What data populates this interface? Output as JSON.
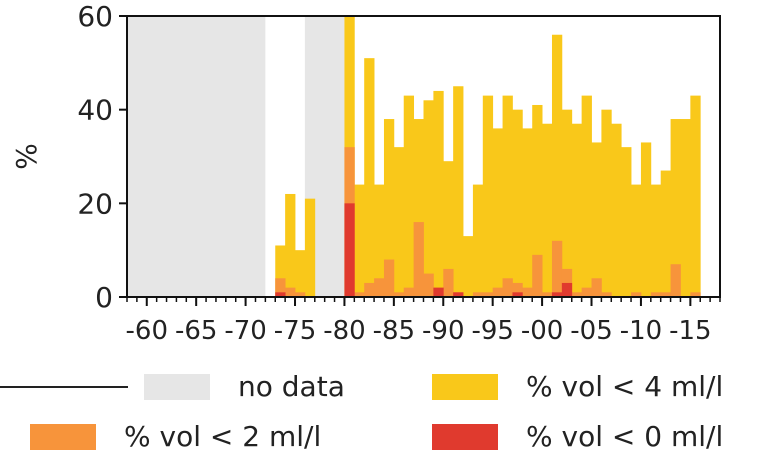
{
  "chart_data": {
    "type": "bar",
    "stacked": false,
    "overlaid": true,
    "ylabel": "%",
    "ylim": [
      0,
      60
    ],
    "yticks": [
      0,
      20,
      40,
      60
    ],
    "xlim": [
      1958,
      2018
    ],
    "xtick_labels": [
      "-60",
      "-65",
      "-70",
      "-75",
      "-80",
      "-85",
      "-90",
      "-95",
      "-00",
      "-05",
      "-10",
      "-15"
    ],
    "xtick_years": [
      1960,
      1965,
      1970,
      1975,
      1980,
      1985,
      1990,
      1995,
      2000,
      2005,
      2010,
      2015
    ],
    "no_data_spans": [
      [
        1958,
        1971
      ],
      [
        1976,
        1979
      ]
    ],
    "years": [
      1973,
      1974,
      1975,
      1976,
      1977,
      1978,
      1979,
      1980,
      1981,
      1982,
      1983,
      1984,
      1985,
      1986,
      1987,
      1988,
      1989,
      1990,
      1991,
      1992,
      1993,
      1994,
      1995,
      1996,
      1997,
      1998,
      1999,
      2000,
      2001,
      2002,
      2003,
      2004,
      2005,
      2006,
      2007,
      2008,
      2009,
      2010,
      2011,
      2012,
      2013,
      2014,
      2015,
      2016,
      2017
    ],
    "series": [
      {
        "name": "% vol < 4 ml/l",
        "color": "#f9c81a",
        "values": [
          11,
          22,
          10,
          21,
          null,
          null,
          null,
          60,
          24,
          51,
          24,
          38,
          32,
          43,
          38,
          42,
          44,
          29,
          45,
          13,
          24,
          43,
          36,
          43,
          40,
          36,
          41,
          37,
          56,
          40,
          37,
          43,
          33,
          40,
          37,
          32,
          24,
          33,
          24,
          27,
          38,
          38,
          43,
          null,
          null
        ],
        "bar_years": [
          1973,
          1974,
          1975,
          1976,
          1977,
          1978,
          1979,
          1980,
          1981,
          1982,
          1983,
          1984,
          1985,
          1986,
          1987,
          1988,
          1989,
          1990,
          1991,
          1992,
          1993,
          1994,
          1995,
          1996,
          1997,
          1998,
          1999,
          2000,
          2001,
          2002,
          2003,
          2004,
          2005,
          2006,
          2007,
          2008,
          2009,
          2010,
          2011,
          2012,
          2013,
          2014,
          2015,
          2016,
          2017
        ]
      },
      {
        "name": "% vol < 2 ml/l",
        "color": "#f7943b",
        "values": [
          4,
          2,
          1,
          0,
          null,
          null,
          null,
          32,
          1,
          3,
          4,
          8,
          1,
          2,
          16,
          5,
          2,
          6,
          1,
          0,
          1,
          1,
          2,
          4,
          3,
          2,
          9,
          1,
          12,
          6,
          1,
          2,
          4,
          1,
          0,
          0,
          1,
          0,
          1,
          1,
          7,
          0,
          1,
          null,
          null
        ],
        "bar_years": [
          1973,
          1974,
          1975,
          1976,
          1977,
          1978,
          1979,
          1980,
          1981,
          1982,
          1983,
          1984,
          1985,
          1986,
          1987,
          1988,
          1989,
          1990,
          1991,
          1992,
          1993,
          1994,
          1995,
          1996,
          1997,
          1998,
          1999,
          2000,
          2001,
          2002,
          2003,
          2004,
          2005,
          2006,
          2007,
          2008,
          2009,
          2010,
          2011,
          2012,
          2013,
          2014,
          2015,
          2016,
          2017
        ]
      },
      {
        "name": "% vol < 0 ml/l",
        "color": "#e03a2e",
        "values": [
          1,
          0,
          0,
          0,
          null,
          null,
          null,
          20,
          0,
          0,
          0,
          0,
          0,
          0,
          0,
          0,
          2,
          0,
          1,
          0,
          0,
          0,
          0,
          0,
          1,
          0,
          0,
          0,
          1,
          3,
          0,
          0,
          0,
          0,
          0,
          0,
          0,
          0,
          0,
          0,
          0,
          0,
          0,
          null,
          null
        ],
        "bar_years": [
          1973,
          1974,
          1975,
          1976,
          1977,
          1978,
          1979,
          1980,
          1981,
          1982,
          1983,
          1984,
          1985,
          1986,
          1987,
          1988,
          1989,
          1990,
          1991,
          1992,
          1993,
          1994,
          1995,
          1996,
          1997,
          1998,
          1999,
          2000,
          2001,
          2002,
          2003,
          2004,
          2005,
          2006,
          2007,
          2008,
          2009,
          2010,
          2011,
          2012,
          2013,
          2014,
          2015,
          2016,
          2017
        ]
      }
    ],
    "grid": false,
    "legend": {
      "placement": "below",
      "entries": [
        {
          "label": "no data",
          "color": "#e6e6e6"
        },
        {
          "label": "% vol < 4 ml/l",
          "color": "#f9c81a"
        },
        {
          "label": "% vol < 2 ml/l",
          "color": "#f7943b"
        },
        {
          "label": "% vol < 0 ml/l",
          "color": "#e03a2e"
        }
      ]
    }
  }
}
